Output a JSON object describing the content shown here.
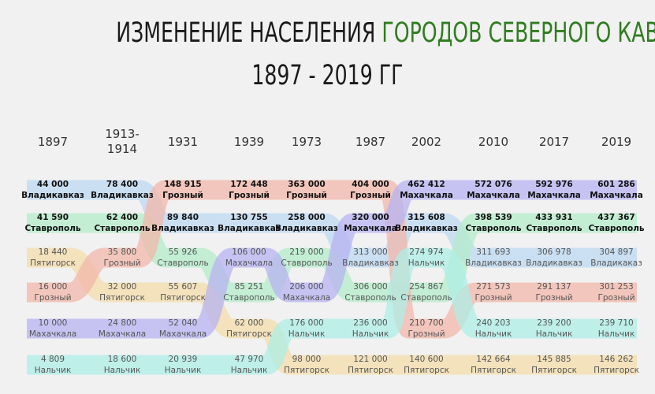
{
  "title": {
    "line1_part1": "ИЗМЕНЕНИЕ НАСЕЛЕНИЯ ",
    "line1_part2": "ГОРОДОВ СЕВЕРНОГО КАВКАЗА",
    "line2": "1897 - 2019 ГГ"
  },
  "colors": {
    "title_accent": "#2f7d1f"
  },
  "chart_data": {
    "type": "line",
    "subtype": "bump (rank) chart",
    "years": [
      "1897",
      "1913-1914",
      "1931",
      "1939",
      "1973",
      "1987",
      "2002",
      "2010",
      "2017",
      "2019"
    ],
    "series": [
      {
        "name": "Владикавказ",
        "color": "#bcd8f2",
        "values": [
          44000,
          78400,
          89840,
          130755,
          258000,
          313000,
          315608,
          311693,
          306978,
          304897
        ],
        "label_overrides": {
          "2019": "Владикаказ"
        }
      },
      {
        "name": "Ставрополь",
        "color": "#b3ecca",
        "values": [
          41590,
          62400,
          55926,
          85251,
          219000,
          306000,
          254867,
          398539,
          433931,
          437367
        ]
      },
      {
        "name": "Пятигорск",
        "color": "#f3dcaa",
        "values": [
          18440,
          32000,
          55607,
          62000,
          98000,
          121000,
          140600,
          142664,
          145885,
          146262
        ]
      },
      {
        "name": "Грозный",
        "color": "#f2b7a9",
        "values": [
          16000,
          35800,
          148915,
          172448,
          363000,
          404000,
          210700,
          271573,
          291137,
          301253
        ]
      },
      {
        "name": "Махачкала",
        "color": "#b7b3f2",
        "values": [
          10000,
          24800,
          52040,
          106000,
          206000,
          320000,
          462412,
          572076,
          592976,
          601286
        ]
      },
      {
        "name": "Нальчик",
        "color": "#aeeee5",
        "values": [
          4809,
          18600,
          20939,
          47970,
          176000,
          236000,
          274974,
          240203,
          239200,
          239710
        ]
      }
    ]
  }
}
